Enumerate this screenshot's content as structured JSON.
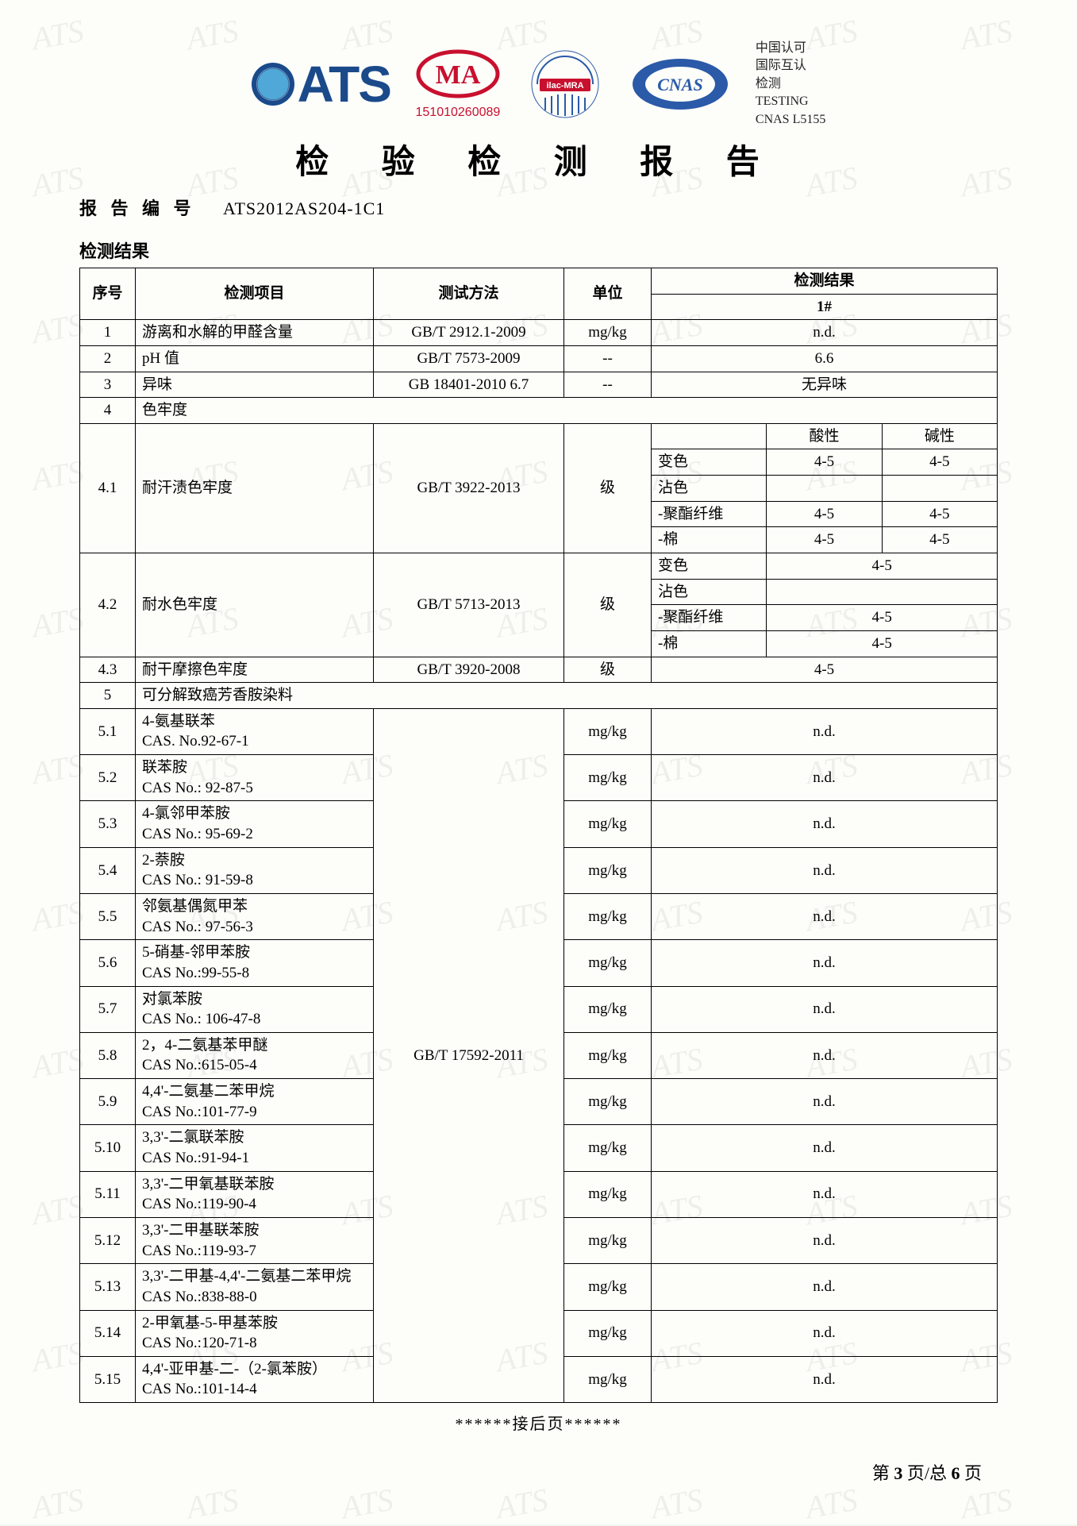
{
  "watermark_text": "ATS",
  "header": {
    "ma_number": "151010260089",
    "cnas_lines": [
      "中国认可",
      "国际互认",
      "检测",
      "TESTING",
      "CNAS L5155"
    ],
    "logo_text": "ATS"
  },
  "title": "检 验 检 测 报 告",
  "report_no_label": "报 告 编 号",
  "report_no": "ATS2012AS204-1C1",
  "section_title": "检测结果",
  "columns": {
    "no": "序号",
    "item": "检测项目",
    "method": "测试方法",
    "unit": "单位",
    "result": "检测结果",
    "result_sub": "1#"
  },
  "sweat": {
    "header_acid": "酸性",
    "header_alk": "碱性",
    "rows": [
      {
        "label": "变色",
        "acid": "4-5",
        "alk": "4-5"
      },
      {
        "label": "沾色",
        "acid": "",
        "alk": ""
      },
      {
        "label": "-聚酯纤维",
        "acid": "4-5",
        "alk": "4-5"
      },
      {
        "label": "-棉",
        "acid": "4-5",
        "alk": "4-5"
      }
    ]
  },
  "water_rows": [
    {
      "label": "变色",
      "val": "4-5"
    },
    {
      "label": "沾色",
      "val": ""
    },
    {
      "label": "-聚酯纤维",
      "val": "4-5"
    },
    {
      "label": "-棉",
      "val": "4-5"
    }
  ],
  "rows_top": [
    {
      "no": "1",
      "item": "游离和水解的甲醛含量",
      "method": "GB/T 2912.1-2009",
      "unit": "mg/kg",
      "result": "n.d."
    },
    {
      "no": "2",
      "item": "pH 值",
      "method": "GB/T 7573-2009",
      "unit": "--",
      "result": "6.6"
    },
    {
      "no": "3",
      "item": "异味",
      "method": "GB 18401-2010 6.7",
      "unit": "--",
      "result": "无异味"
    }
  ],
  "row4": {
    "no": "4",
    "item": "色牢度"
  },
  "row41": {
    "no": "4.1",
    "item": "耐汗渍色牢度",
    "method": "GB/T 3922-2013",
    "unit": "级"
  },
  "row42": {
    "no": "4.2",
    "item": "耐水色牢度",
    "method": "GB/T 5713-2013",
    "unit": "级"
  },
  "row43": {
    "no": "4.3",
    "item": "耐干摩擦色牢度",
    "method": "GB/T 3920-2008",
    "unit": "级",
    "result": "4-5"
  },
  "row5": {
    "no": "5",
    "item": "可分解致癌芳香胺染料"
  },
  "amine_method": "GB/T 17592-2011",
  "amines": [
    {
      "no": "5.1",
      "name": "4-氨基联苯",
      "cas": "CAS. No.92-67-1",
      "unit": "mg/kg",
      "result": "n.d."
    },
    {
      "no": "5.2",
      "name": "联苯胺",
      "cas": "CAS No.: 92-87-5",
      "unit": "mg/kg",
      "result": "n.d."
    },
    {
      "no": "5.3",
      "name": "4-氯邻甲苯胺",
      "cas": "CAS No.: 95-69-2",
      "unit": "mg/kg",
      "result": "n.d."
    },
    {
      "no": "5.4",
      "name": "2-萘胺",
      "cas": "CAS No.: 91-59-8",
      "unit": "mg/kg",
      "result": "n.d."
    },
    {
      "no": "5.5",
      "name": "邻氨基偶氮甲苯",
      "cas": "CAS No.: 97-56-3",
      "unit": "mg/kg",
      "result": "n.d."
    },
    {
      "no": "5.6",
      "name": "5-硝基-邻甲苯胺",
      "cas": "CAS No.:99-55-8",
      "unit": "mg/kg",
      "result": "n.d."
    },
    {
      "no": "5.7",
      "name": "对氯苯胺",
      "cas": "CAS No.: 106-47-8",
      "unit": "mg/kg",
      "result": "n.d."
    },
    {
      "no": "5.8",
      "name": "2，4-二氨基苯甲醚",
      "cas": "CAS No.:615-05-4",
      "unit": "mg/kg",
      "result": "n.d."
    },
    {
      "no": "5.9",
      "name": "4,4'-二氨基二苯甲烷",
      "cas": "CAS No.:101-77-9",
      "unit": "mg/kg",
      "result": "n.d."
    },
    {
      "no": "5.10",
      "name": "3,3'-二氯联苯胺",
      "cas": "CAS No.:91-94-1",
      "unit": "mg/kg",
      "result": "n.d."
    },
    {
      "no": "5.11",
      "name": "3,3'-二甲氧基联苯胺",
      "cas": "CAS No.:119-90-4",
      "unit": "mg/kg",
      "result": "n.d."
    },
    {
      "no": "5.12",
      "name": "3,3'-二甲基联苯胺",
      "cas": "CAS No.:119-93-7",
      "unit": "mg/kg",
      "result": "n.d."
    },
    {
      "no": "5.13",
      "name": "3,3'-二甲基-4,4'-二氨基二苯甲烷",
      "cas": "CAS No.:838-88-0",
      "unit": "mg/kg",
      "result": "n.d."
    },
    {
      "no": "5.14",
      "name": "2-甲氧基-5-甲基苯胺",
      "cas": "CAS No.:120-71-8",
      "unit": "mg/kg",
      "result": "n.d."
    },
    {
      "no": "5.15",
      "name": "4,4'-亚甲基-二-（2-氯苯胺）",
      "cas": "CAS No.:101-14-4",
      "unit": "mg/kg",
      "result": "n.d."
    }
  ],
  "continue_text": "******接后页******",
  "footer": {
    "prefix": "第 ",
    "page": "3",
    "mid": " 页/总 ",
    "total": "6",
    "suffix": " 页"
  },
  "colors": {
    "border": "#000000",
    "bg": "#fdfdfa",
    "logo_blue": "#1a4a8a",
    "ma_red": "#c8102e",
    "cnas_blue": "#2a5aa8",
    "wm": "rgba(0,0,0,0.06)"
  },
  "col_widths": {
    "no": "70px",
    "item": "300px",
    "method": "240px",
    "unit": "110px"
  }
}
